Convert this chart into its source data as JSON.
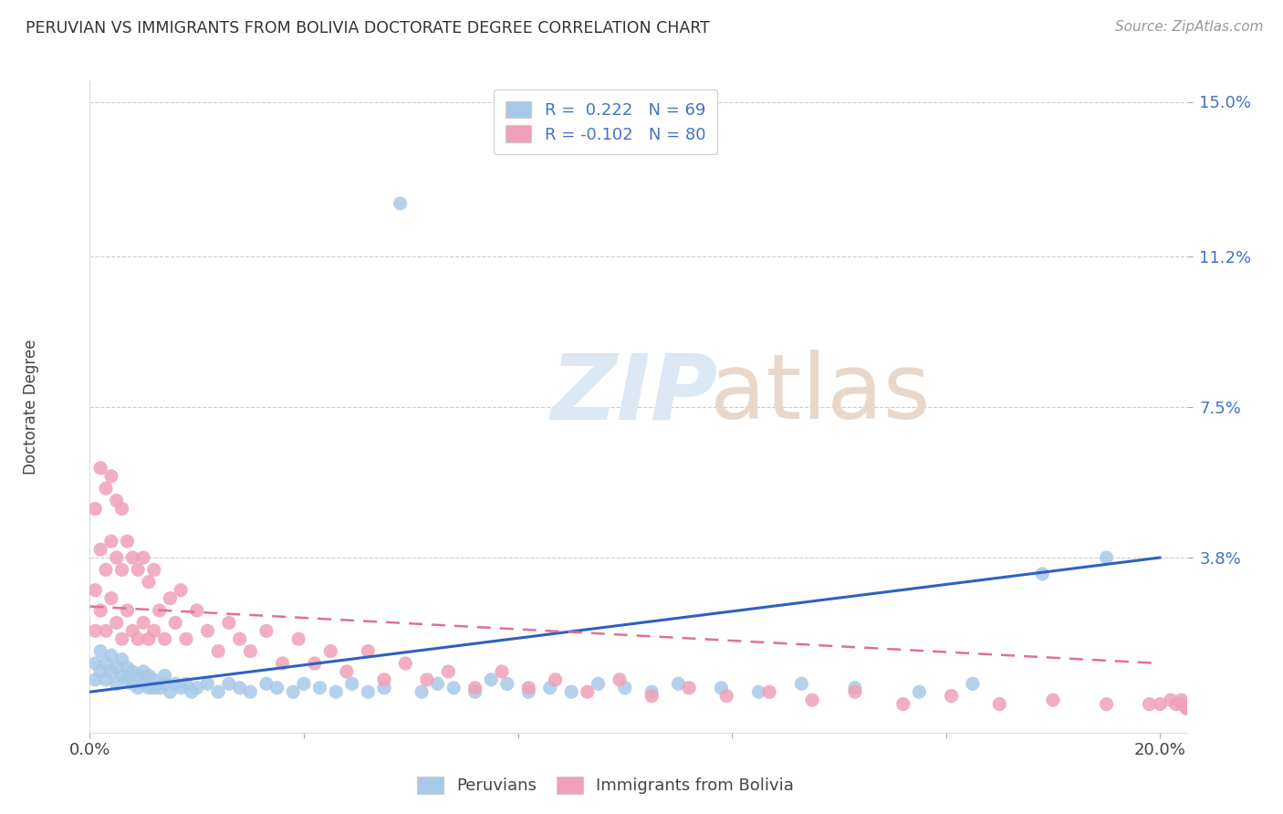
{
  "title": "PERUVIAN VS IMMIGRANTS FROM BOLIVIA DOCTORATE DEGREE CORRELATION CHART",
  "source": "Source: ZipAtlas.com",
  "ylabel": "Doctorate Degree",
  "xlim": [
    0.0,
    0.205
  ],
  "ylim": [
    -0.005,
    0.155
  ],
  "ytick_vals": [
    0.038,
    0.075,
    0.112,
    0.15
  ],
  "ytick_labels": [
    "3.8%",
    "7.5%",
    "11.2%",
    "15.0%"
  ],
  "xtick_vals": [
    0.0,
    0.2
  ],
  "xtick_labels": [
    "0.0%",
    "20.0%"
  ],
  "grid_color": "#cccccc",
  "background_color": "#ffffff",
  "blue_color": "#a8c8e8",
  "pink_color": "#f0a0b8",
  "blue_line_color": "#3060c0",
  "pink_line_color": "#e07090",
  "legend_R1": " 0.222",
  "legend_N1": "69",
  "legend_R2": "-0.102",
  "legend_N2": "80",
  "blue_points_x": [
    0.001,
    0.001,
    0.002,
    0.002,
    0.003,
    0.003,
    0.004,
    0.004,
    0.005,
    0.005,
    0.006,
    0.006,
    0.007,
    0.007,
    0.008,
    0.008,
    0.009,
    0.009,
    0.01,
    0.01,
    0.011,
    0.011,
    0.012,
    0.012,
    0.013,
    0.014,
    0.014,
    0.015,
    0.016,
    0.017,
    0.018,
    0.019,
    0.02,
    0.022,
    0.024,
    0.026,
    0.028,
    0.03,
    0.033,
    0.035,
    0.038,
    0.04,
    0.043,
    0.046,
    0.049,
    0.052,
    0.055,
    0.058,
    0.062,
    0.065,
    0.068,
    0.072,
    0.075,
    0.078,
    0.082,
    0.086,
    0.09,
    0.095,
    0.1,
    0.105,
    0.11,
    0.118,
    0.125,
    0.133,
    0.143,
    0.155,
    0.165,
    0.178,
    0.19
  ],
  "blue_points_y": [
    0.008,
    0.012,
    0.01,
    0.015,
    0.008,
    0.012,
    0.01,
    0.014,
    0.007,
    0.011,
    0.009,
    0.013,
    0.008,
    0.011,
    0.007,
    0.01,
    0.006,
    0.009,
    0.007,
    0.01,
    0.006,
    0.009,
    0.006,
    0.008,
    0.006,
    0.007,
    0.009,
    0.005,
    0.007,
    0.006,
    0.007,
    0.005,
    0.006,
    0.007,
    0.005,
    0.007,
    0.006,
    0.005,
    0.007,
    0.006,
    0.005,
    0.007,
    0.006,
    0.005,
    0.007,
    0.005,
    0.006,
    0.125,
    0.005,
    0.007,
    0.006,
    0.005,
    0.008,
    0.007,
    0.005,
    0.006,
    0.005,
    0.007,
    0.006,
    0.005,
    0.007,
    0.006,
    0.005,
    0.007,
    0.006,
    0.005,
    0.007,
    0.034,
    0.038
  ],
  "pink_points_x": [
    0.001,
    0.001,
    0.001,
    0.002,
    0.002,
    0.002,
    0.003,
    0.003,
    0.003,
    0.004,
    0.004,
    0.004,
    0.005,
    0.005,
    0.005,
    0.006,
    0.006,
    0.006,
    0.007,
    0.007,
    0.008,
    0.008,
    0.009,
    0.009,
    0.01,
    0.01,
    0.011,
    0.011,
    0.012,
    0.012,
    0.013,
    0.014,
    0.015,
    0.016,
    0.017,
    0.018,
    0.02,
    0.022,
    0.024,
    0.026,
    0.028,
    0.03,
    0.033,
    0.036,
    0.039,
    0.042,
    0.045,
    0.048,
    0.052,
    0.055,
    0.059,
    0.063,
    0.067,
    0.072,
    0.077,
    0.082,
    0.087,
    0.093,
    0.099,
    0.105,
    0.112,
    0.119,
    0.127,
    0.135,
    0.143,
    0.152,
    0.161,
    0.17,
    0.18,
    0.19,
    0.198,
    0.2,
    0.202,
    0.203,
    0.204,
    0.204,
    0.205,
    0.205,
    0.205,
    0.205
  ],
  "pink_points_y": [
    0.02,
    0.03,
    0.05,
    0.025,
    0.04,
    0.06,
    0.02,
    0.035,
    0.055,
    0.028,
    0.042,
    0.058,
    0.022,
    0.038,
    0.052,
    0.018,
    0.035,
    0.05,
    0.025,
    0.042,
    0.02,
    0.038,
    0.018,
    0.035,
    0.022,
    0.038,
    0.018,
    0.032,
    0.02,
    0.035,
    0.025,
    0.018,
    0.028,
    0.022,
    0.03,
    0.018,
    0.025,
    0.02,
    0.015,
    0.022,
    0.018,
    0.015,
    0.02,
    0.012,
    0.018,
    0.012,
    0.015,
    0.01,
    0.015,
    0.008,
    0.012,
    0.008,
    0.01,
    0.006,
    0.01,
    0.006,
    0.008,
    0.005,
    0.008,
    0.004,
    0.006,
    0.004,
    0.005,
    0.003,
    0.005,
    0.002,
    0.004,
    0.002,
    0.003,
    0.002,
    0.002,
    0.002,
    0.003,
    0.002,
    0.003,
    0.002,
    0.001,
    0.001,
    0.001,
    0.001
  ]
}
